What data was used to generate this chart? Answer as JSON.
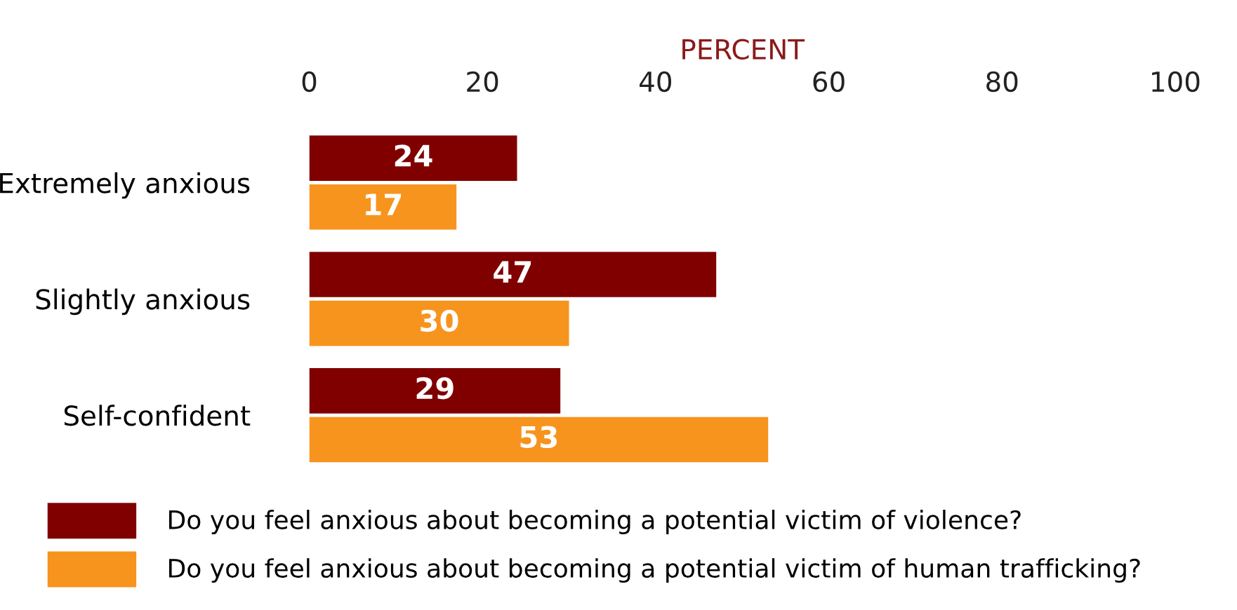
{
  "chart_data": {
    "type": "bar",
    "orientation": "horizontal",
    "xlabel": "PERCENT",
    "categories": [
      "Extremely anxious",
      "Slightly anxious",
      "Self-confident"
    ],
    "series": [
      {
        "name": "Do you feel anxious about becoming a potential victim of violence?",
        "color": "#800000",
        "values": [
          24,
          47,
          29
        ]
      },
      {
        "name": "Do you feel anxious about becoming a potential victim of human trafficking?",
        "color": "#f7941d",
        "values": [
          17,
          30,
          53
        ]
      }
    ],
    "xlim": [
      0,
      100
    ],
    "xticks": [
      0,
      20,
      40,
      60,
      80,
      100
    ],
    "data_labels": true,
    "legend": "bottom",
    "grid": false
  }
}
